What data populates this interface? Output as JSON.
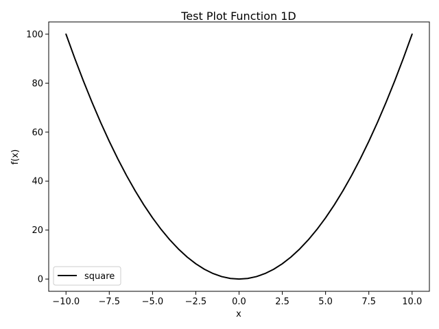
{
  "chart_data": {
    "type": "line",
    "title": "Test Plot Function 1D",
    "xlabel": "x",
    "ylabel": "f(x)",
    "xlim": [
      -11.0,
      11.0
    ],
    "ylim": [
      -5.0,
      105.0
    ],
    "xticks": [
      -10.0,
      -7.5,
      -5.0,
      -2.5,
      0.0,
      2.5,
      5.0,
      7.5,
      10.0
    ],
    "xtick_labels": [
      "−10.0",
      "−7.5",
      "−5.0",
      "−2.5",
      "0.0",
      "2.5",
      "5.0",
      "7.5",
      "10.0"
    ],
    "yticks": [
      0,
      20,
      40,
      60,
      80,
      100
    ],
    "ytick_labels": [
      "0",
      "20",
      "40",
      "60",
      "80",
      "100"
    ],
    "grid": false,
    "legend_position": "lower-left",
    "series": [
      {
        "name": "square",
        "color": "#000000",
        "x": [
          -10,
          -9.5,
          -9,
          -8.5,
          -8,
          -7.5,
          -7,
          -6.5,
          -6,
          -5.5,
          -5,
          -4.5,
          -4,
          -3.5,
          -3,
          -2.5,
          -2,
          -1.5,
          -1,
          -0.5,
          0,
          0.5,
          1,
          1.5,
          2,
          2.5,
          3,
          3.5,
          4,
          4.5,
          5,
          5.5,
          6,
          6.5,
          7,
          7.5,
          8,
          8.5,
          9,
          9.5,
          10
        ],
        "y": [
          100,
          90.25,
          81,
          72.25,
          64,
          56.25,
          49,
          42.25,
          36,
          30.25,
          25,
          20.25,
          16,
          12.25,
          9,
          6.25,
          4,
          2.25,
          1,
          0.25,
          0,
          0.25,
          1,
          2.25,
          4,
          6.25,
          9,
          12.25,
          16,
          20.25,
          25,
          30.25,
          36,
          42.25,
          49,
          56.25,
          64,
          72.25,
          81,
          90.25,
          100
        ]
      }
    ]
  }
}
